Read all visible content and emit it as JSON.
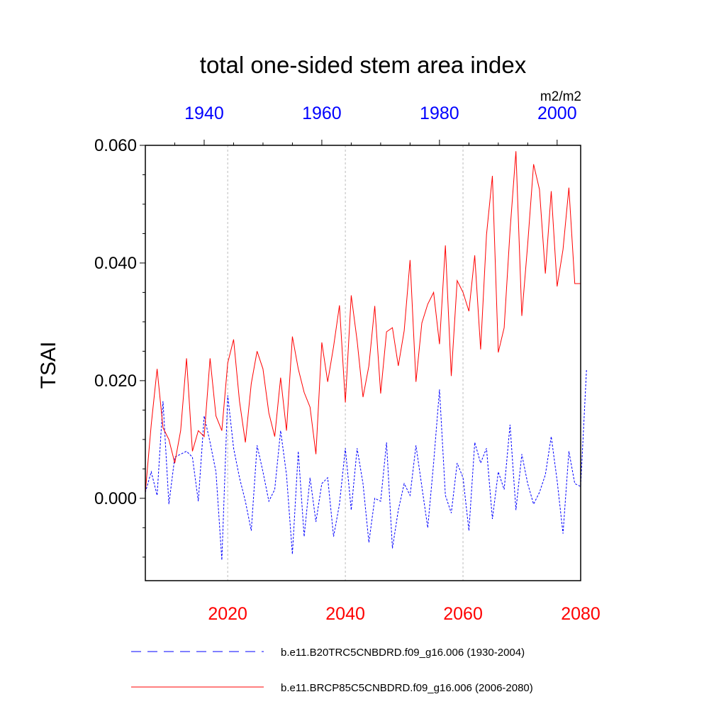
{
  "chart_data": {
    "type": "line",
    "title": "total one-sided stem area index",
    "ylabel": "TSAI",
    "units": "m2/m2",
    "ylim": [
      -0.014,
      0.06
    ],
    "yticks": [
      0.0,
      0.02,
      0.04,
      0.06
    ],
    "ytick_labels": [
      "0.000",
      "0.020",
      "0.040",
      "0.060"
    ],
    "x_bottom": {
      "range": [
        2006,
        2080
      ],
      "ticks": [
        2020,
        2040,
        2060,
        2080
      ],
      "labels": [
        "2020",
        "2040",
        "2060",
        "2080"
      ],
      "color": "#ff0000"
    },
    "x_top": {
      "range": [
        1930,
        2004
      ],
      "ticks": [
        1940,
        1960,
        1980,
        2000
      ],
      "labels": [
        "1940",
        "1960",
        "1980",
        "2000"
      ],
      "color": "#0000ff"
    },
    "gridlines_x": [
      2020,
      2040,
      2060
    ],
    "series": [
      {
        "name": "b.e11.B20TRC5CNBDRD.f09_g16.006 (1930-2004)",
        "color": "#0000ff",
        "dash": true,
        "axis": "top",
        "x_start": 1930,
        "values": [
          0.001,
          0.0045,
          0.0005,
          0.0165,
          -0.001,
          0.007,
          0.0075,
          0.008,
          0.007,
          -0.0005,
          0.014,
          0.0095,
          0.0045,
          -0.0105,
          0.0175,
          0.0085,
          0.0035,
          -0.0005,
          -0.0055,
          0.009,
          0.0045,
          -0.0005,
          0.0015,
          0.0115,
          0.004,
          -0.0095,
          0.008,
          -0.0065,
          0.0035,
          -0.004,
          0.0025,
          0.0035,
          -0.0065,
          -0.001,
          0.0085,
          -0.002,
          0.0085,
          0.0025,
          -0.0075,
          0.0,
          -0.0005,
          0.0095,
          -0.0085,
          -0.002,
          0.0025,
          0.0005,
          0.009,
          0.002,
          -0.005,
          0.006,
          0.0185,
          0.0005,
          -0.0025,
          0.006,
          0.0035,
          -0.0055,
          0.0095,
          0.006,
          0.0085,
          -0.0035,
          0.0045,
          0.0015,
          0.0125,
          -0.002,
          0.0075,
          0.0025,
          -0.001,
          0.001,
          0.004,
          0.0105,
          0.003,
          -0.006,
          0.008,
          0.0025,
          0.002,
          0.022
        ]
      },
      {
        "name": "b.e11.BRCP85C5CNBDRD.f09_g16.006 (2006-2080)",
        "color": "#ff0000",
        "dash": false,
        "axis": "bottom",
        "x_start": 2006,
        "values": [
          0.001,
          0.0125,
          0.022,
          0.012,
          0.01,
          0.006,
          0.0115,
          0.0238,
          0.008,
          0.0115,
          0.0105,
          0.0238,
          0.014,
          0.0115,
          0.023,
          0.027,
          0.0165,
          0.0095,
          0.0195,
          0.025,
          0.022,
          0.0145,
          0.0105,
          0.0205,
          0.0115,
          0.0275,
          0.022,
          0.018,
          0.0155,
          0.0075,
          0.0265,
          0.0198,
          0.0258,
          0.0328,
          0.0163,
          0.0345,
          0.0268,
          0.0172,
          0.0225,
          0.0327,
          0.0178,
          0.0283,
          0.029,
          0.0225,
          0.0285,
          0.0405,
          0.0198,
          0.0298,
          0.033,
          0.035,
          0.0262,
          0.043,
          0.0208,
          0.037,
          0.035,
          0.0318,
          0.0413,
          0.0253,
          0.0448,
          0.0548,
          0.0248,
          0.029,
          0.0455,
          0.059,
          0.031,
          0.0432,
          0.0568,
          0.0525,
          0.0382,
          0.0522,
          0.036,
          0.0423,
          0.0528,
          0.0365,
          0.0365
        ]
      }
    ],
    "legend_position": "bottom"
  }
}
